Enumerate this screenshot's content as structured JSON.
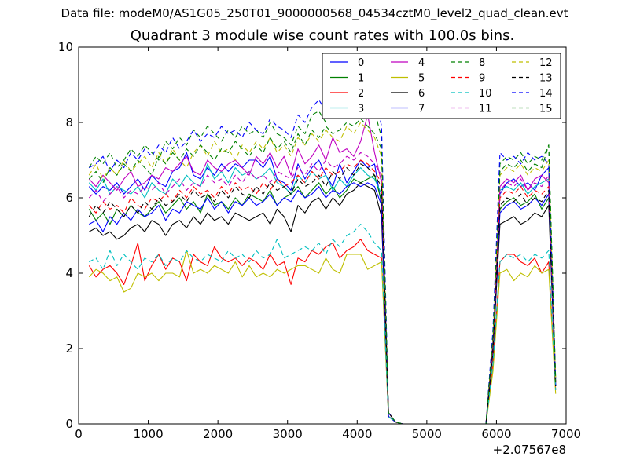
{
  "figure": {
    "suptitle": "Data file: modeM0/AS1G05_250T01_9000000568_04534cztM0_level2_quad_clean.evt"
  },
  "chart_data": {
    "type": "line",
    "title": "Quadrant 3 module wise count rates with 100.0s bins.",
    "xlabel": "",
    "ylabel": "",
    "x_offset_label": "+2.07567e8",
    "xlim": [
      0,
      7000
    ],
    "ylim": [
      0,
      10
    ],
    "xticks": [
      0,
      1000,
      2000,
      3000,
      4000,
      5000,
      6000,
      7000
    ],
    "yticks": [
      0,
      2,
      4,
      6,
      8,
      10
    ],
    "grid": false,
    "legend": {
      "placement": "top-right",
      "columns": 4
    },
    "x": [
      150,
      250,
      350,
      450,
      550,
      650,
      750,
      850,
      950,
      1050,
      1150,
      1250,
      1350,
      1450,
      1550,
      1650,
      1750,
      1850,
      1950,
      2050,
      2150,
      2250,
      2350,
      2450,
      2550,
      2650,
      2750,
      2850,
      2950,
      3050,
      3150,
      3250,
      3350,
      3450,
      3550,
      3650,
      3750,
      3850,
      3950,
      4050,
      4150,
      4250,
      4350,
      4450,
      4550,
      4650,
      4750,
      4850,
      4950,
      5050,
      5150,
      5250,
      5350,
      5450,
      5550,
      5650,
      5750,
      5850,
      5950,
      6050,
      6150,
      6250,
      6350,
      6450,
      6550,
      6650,
      6750,
      6850
    ],
    "series": [
      {
        "name": "0",
        "color": "#0000ff",
        "dash": "solid",
        "values": [
          6.3,
          6.1,
          6.3,
          6.2,
          6.4,
          6.1,
          6.3,
          6.5,
          6.2,
          6.6,
          6.4,
          6.3,
          6.7,
          6.8,
          7.2,
          6.6,
          6.5,
          6.8,
          6.6,
          6.9,
          6.7,
          6.9,
          6.8,
          7.0,
          7.0,
          6.8,
          7.1,
          6.5,
          6.4,
          6.2,
          6.9,
          6.5,
          6.8,
          7.0,
          6.6,
          6.3,
          6.9,
          6.4,
          6.7,
          7.0,
          6.8,
          6.9,
          5.8,
          0.3,
          0.05,
          0,
          0,
          0,
          0,
          0,
          0,
          0,
          0,
          0,
          0,
          0,
          0,
          0,
          2.0,
          6.1,
          6.4,
          6.5,
          6.3,
          6.4,
          6.2,
          6.6,
          6.8,
          1.0
        ]
      },
      {
        "name": "1",
        "color": "#008000",
        "dash": "solid",
        "values": [
          5.7,
          5.4,
          5.6,
          5.3,
          5.7,
          5.5,
          5.8,
          5.6,
          5.5,
          5.7,
          5.9,
          5.6,
          5.8,
          6.0,
          5.7,
          5.9,
          5.6,
          6.1,
          5.8,
          5.9,
          5.7,
          6.0,
          5.8,
          6.1,
          6.0,
          5.9,
          6.2,
          5.8,
          6.0,
          6.1,
          6.3,
          6.0,
          6.2,
          6.4,
          6.1,
          6.3,
          6.0,
          6.2,
          6.5,
          6.4,
          6.5,
          6.6,
          5.9,
          0.3,
          0.05,
          0,
          0,
          0,
          0,
          0,
          0,
          0,
          0,
          0,
          0,
          0,
          0,
          0,
          2.2,
          5.7,
          5.9,
          6.0,
          5.8,
          5.9,
          6.1,
          5.7,
          6.0,
          1.2
        ]
      },
      {
        "name": "2",
        "color": "#ff0000",
        "dash": "solid",
        "values": [
          4.2,
          3.9,
          4.1,
          4.2,
          4.0,
          3.7,
          4.2,
          4.8,
          3.8,
          4.2,
          4.5,
          4.1,
          4.4,
          4.3,
          3.8,
          4.5,
          4.3,
          4.2,
          4.7,
          4.4,
          4.3,
          4.4,
          4.2,
          4.4,
          4.3,
          4.1,
          4.5,
          4.2,
          4.3,
          3.7,
          4.4,
          4.3,
          4.6,
          4.5,
          4.7,
          4.8,
          4.4,
          4.6,
          4.7,
          4.9,
          4.6,
          4.5,
          4.4,
          0.2,
          0.05,
          0,
          0,
          0,
          0,
          0,
          0,
          0,
          0,
          0,
          0,
          0,
          0,
          0,
          1.6,
          4.3,
          4.5,
          4.5,
          4.3,
          4.2,
          4.4,
          4.0,
          4.3,
          0.9
        ]
      },
      {
        "name": "3",
        "color": "#00bfbf",
        "dash": "solid",
        "values": [
          6.4,
          6.2,
          6.5,
          6.1,
          6.3,
          6.2,
          6.1,
          6.3,
          6.0,
          6.4,
          6.2,
          6.1,
          6.5,
          6.3,
          6.6,
          6.4,
          6.3,
          6.9,
          6.5,
          6.7,
          6.4,
          6.8,
          6.6,
          6.7,
          6.5,
          6.6,
          6.8,
          6.4,
          6.3,
          6.1,
          6.6,
          6.4,
          6.7,
          6.5,
          6.6,
          6.2,
          6.5,
          6.3,
          6.6,
          6.8,
          6.6,
          6.5,
          6.1,
          0.3,
          0.05,
          0,
          0,
          0,
          0,
          0,
          0,
          0,
          0,
          0,
          0,
          0,
          0,
          0,
          2.0,
          6.2,
          6.3,
          6.2,
          6.4,
          6.1,
          6.3,
          6.4,
          6.5,
          1.1
        ]
      },
      {
        "name": "4",
        "color": "#bf00bf",
        "dash": "solid",
        "values": [
          6.5,
          6.3,
          6.6,
          6.4,
          6.2,
          6.5,
          6.7,
          6.3,
          6.4,
          6.6,
          6.5,
          6.8,
          6.7,
          6.9,
          7.1,
          6.7,
          6.6,
          7.0,
          6.8,
          6.7,
          6.9,
          7.0,
          6.8,
          6.6,
          7.1,
          6.9,
          7.2,
          6.8,
          7.1,
          6.6,
          7.3,
          6.9,
          7.1,
          7.4,
          7.0,
          7.6,
          7.2,
          7.3,
          7.1,
          7.5,
          8.2,
          7.2,
          6.4,
          0.3,
          0.05,
          0,
          0,
          0,
          0,
          0,
          0,
          0,
          0,
          0,
          0,
          0,
          0,
          0,
          2.1,
          6.3,
          6.5,
          6.4,
          6.6,
          6.2,
          6.5,
          6.6,
          6.4,
          1.1
        ]
      },
      {
        "name": "5",
        "color": "#bfbf00",
        "dash": "solid",
        "values": [
          3.9,
          4.1,
          4.0,
          3.8,
          3.9,
          3.5,
          3.6,
          4.0,
          3.9,
          4.0,
          3.8,
          4.0,
          4.0,
          3.9,
          4.6,
          4.0,
          4.1,
          4.0,
          4.2,
          4.1,
          4.0,
          4.3,
          3.9,
          4.2,
          3.9,
          4.0,
          3.9,
          4.1,
          4.0,
          4.1,
          4.2,
          4.2,
          4.1,
          4.0,
          4.4,
          4.1,
          4.0,
          4.5,
          4.5,
          4.5,
          4.1,
          4.2,
          4.3,
          0.2,
          0.05,
          0,
          0,
          0,
          0,
          0,
          0,
          0,
          0,
          0,
          0,
          0,
          0,
          0,
          1.4,
          4.0,
          4.1,
          3.8,
          4.0,
          3.9,
          4.2,
          4.0,
          4.1,
          0.8
        ]
      },
      {
        "name": "6",
        "color": "#000000",
        "dash": "solid",
        "values": [
          5.1,
          5.2,
          5.0,
          5.1,
          4.9,
          5.0,
          5.2,
          5.3,
          5.1,
          5.4,
          5.3,
          5.0,
          5.3,
          5.4,
          5.2,
          5.5,
          5.3,
          5.6,
          5.4,
          5.5,
          5.3,
          5.6,
          5.5,
          5.4,
          5.5,
          5.6,
          5.3,
          5.7,
          5.5,
          5.1,
          5.8,
          5.6,
          5.9,
          6.0,
          5.7,
          6.0,
          5.8,
          6.1,
          6.2,
          6.4,
          6.3,
          6.2,
          5.5,
          0.2,
          0.05,
          0,
          0,
          0,
          0,
          0,
          0,
          0,
          0,
          0,
          0,
          0,
          0,
          0,
          1.9,
          5.3,
          5.4,
          5.5,
          5.3,
          5.4,
          5.6,
          5.5,
          5.8,
          1.0
        ]
      },
      {
        "name": "7",
        "color": "#0000ff",
        "dash": "solid",
        "values": [
          5.3,
          5.4,
          5.1,
          5.5,
          5.3,
          5.6,
          5.4,
          5.7,
          5.5,
          5.6,
          5.8,
          5.4,
          5.7,
          5.6,
          5.9,
          5.8,
          5.7,
          6.0,
          5.7,
          5.9,
          5.6,
          5.9,
          5.8,
          6.0,
          5.8,
          5.9,
          6.1,
          5.8,
          6.0,
          5.9,
          6.2,
          6.0,
          6.1,
          6.3,
          6.0,
          6.2,
          6.1,
          6.3,
          6.4,
          6.3,
          6.4,
          6.3,
          5.8,
          0.2,
          0.05,
          0,
          0,
          0,
          0,
          0,
          0,
          0,
          0,
          0,
          0,
          0,
          0,
          0,
          2.0,
          5.6,
          5.8,
          5.9,
          5.7,
          5.8,
          6.0,
          5.8,
          6.1,
          1.0
        ]
      },
      {
        "name": "8",
        "color": "#008000",
        "dash": "dashed",
        "values": [
          6.8,
          7.1,
          6.9,
          7.2,
          6.8,
          7.0,
          7.3,
          7.1,
          7.4,
          7.2,
          7.0,
          7.5,
          7.3,
          7.6,
          7.4,
          7.8,
          7.6,
          7.9,
          7.7,
          7.5,
          7.8,
          7.6,
          7.9,
          7.7,
          7.8,
          7.6,
          8.0,
          7.7,
          7.6,
          7.4,
          7.9,
          7.7,
          8.2,
          8.3,
          8.0,
          8.5,
          8.2,
          8.4,
          8.6,
          8.8,
          8.5,
          8.3,
          7.6,
          0.3,
          0.05,
          0,
          0,
          0,
          0,
          0,
          0,
          0,
          0,
          0,
          0,
          0,
          0,
          0,
          2.4,
          6.9,
          7.1,
          7.0,
          7.2,
          6.9,
          7.1,
          7.0,
          7.4,
          1.2
        ]
      },
      {
        "name": "9",
        "color": "#ff0000",
        "dash": "dashed",
        "values": [
          5.8,
          5.6,
          5.9,
          5.7,
          5.8,
          5.6,
          6.0,
          5.8,
          5.7,
          6.0,
          5.9,
          6.1,
          5.9,
          6.2,
          6.0,
          6.3,
          6.1,
          6.2,
          6.0,
          6.3,
          6.1,
          6.4,
          6.2,
          6.3,
          6.1,
          6.4,
          6.2,
          6.5,
          6.3,
          6.4,
          6.6,
          6.4,
          6.7,
          6.5,
          6.8,
          6.6,
          6.7,
          6.9,
          6.8,
          7.0,
          6.9,
          6.7,
          6.4,
          0.3,
          0.05,
          0,
          0,
          0,
          0,
          0,
          0,
          0,
          0,
          0,
          0,
          0,
          0,
          0,
          2.1,
          6.0,
          6.2,
          6.1,
          6.3,
          6.0,
          6.2,
          6.1,
          6.3,
          1.1
        ]
      },
      {
        "name": "10",
        "color": "#00bfbf",
        "dash": "dashed",
        "values": [
          4.3,
          4.4,
          4.1,
          4.6,
          4.2,
          4.5,
          4.3,
          4.1,
          4.4,
          4.3,
          4.5,
          4.2,
          4.4,
          4.3,
          4.6,
          4.4,
          4.3,
          4.5,
          4.4,
          4.3,
          4.6,
          4.4,
          4.5,
          4.3,
          4.6,
          4.4,
          4.5,
          4.9,
          4.4,
          4.5,
          4.6,
          4.7,
          4.6,
          4.8,
          4.5,
          4.9,
          4.7,
          5.0,
          5.1,
          5.3,
          5.1,
          4.8,
          4.6,
          0.2,
          0.05,
          0,
          0,
          0,
          0,
          0,
          0,
          0,
          0,
          0,
          0,
          0,
          0,
          0,
          1.6,
          4.3,
          4.5,
          4.4,
          4.5,
          4.3,
          4.5,
          4.4,
          4.6,
          0.9
        ]
      },
      {
        "name": "11",
        "color": "#bf00bf",
        "dash": "dashed",
        "values": [
          6.0,
          6.2,
          5.9,
          6.1,
          6.3,
          6.0,
          6.2,
          6.1,
          6.3,
          6.2,
          6.4,
          6.1,
          6.3,
          6.5,
          6.2,
          6.4,
          6.3,
          6.6,
          6.4,
          6.5,
          6.3,
          6.6,
          6.4,
          6.7,
          6.5,
          6.6,
          6.4,
          6.7,
          6.6,
          6.5,
          6.8,
          6.6,
          6.9,
          6.7,
          7.0,
          6.8,
          6.9,
          7.1,
          7.0,
          7.2,
          7.1,
          6.9,
          6.6,
          0.3,
          0.05,
          0,
          0,
          0,
          0,
          0,
          0,
          0,
          0,
          0,
          0,
          0,
          0,
          0,
          2.1,
          6.2,
          6.4,
          6.3,
          6.5,
          6.2,
          6.4,
          6.3,
          6.6,
          1.1
        ]
      },
      {
        "name": "12",
        "color": "#bfbf00",
        "dash": "dashed",
        "values": [
          6.6,
          6.9,
          6.5,
          6.8,
          6.6,
          7.0,
          6.7,
          6.9,
          7.1,
          6.8,
          7.2,
          6.9,
          7.3,
          7.0,
          6.8,
          7.2,
          7.4,
          7.1,
          7.5,
          7.2,
          7.3,
          7.0,
          7.4,
          7.2,
          7.5,
          7.3,
          7.6,
          7.2,
          7.4,
          7.1,
          7.6,
          7.4,
          7.7,
          7.5,
          7.8,
          7.6,
          7.5,
          7.9,
          7.7,
          8.0,
          7.8,
          7.6,
          7.1,
          0.3,
          0.05,
          0,
          0,
          0,
          0,
          0,
          0,
          0,
          0,
          0,
          0,
          0,
          0,
          0,
          2.3,
          6.6,
          6.8,
          6.7,
          6.9,
          6.6,
          6.8,
          6.7,
          7.0,
          1.2
        ]
      },
      {
        "name": "13",
        "color": "#000000",
        "dash": "dashed",
        "values": [
          5.5,
          5.8,
          5.6,
          5.9,
          5.7,
          5.5,
          5.8,
          5.6,
          5.9,
          5.7,
          6.0,
          5.8,
          5.9,
          6.1,
          5.9,
          6.2,
          6.0,
          6.1,
          5.9,
          6.2,
          6.0,
          6.3,
          6.1,
          6.0,
          6.3,
          6.1,
          6.4,
          6.2,
          6.3,
          6.1,
          6.5,
          6.3,
          6.4,
          6.6,
          6.3,
          6.7,
          6.5,
          6.8,
          6.6,
          6.9,
          6.8,
          6.6,
          6.3,
          0.3,
          0.05,
          0,
          0,
          0,
          0,
          0,
          0,
          0,
          0,
          0,
          0,
          0,
          0,
          0,
          2.0,
          5.8,
          6.0,
          5.9,
          6.1,
          5.8,
          6.0,
          5.9,
          6.2,
          1.0
        ]
      },
      {
        "name": "14",
        "color": "#0000ff",
        "dash": "dashed",
        "values": [
          6.8,
          6.9,
          7.1,
          6.7,
          7.0,
          6.8,
          7.2,
          7.0,
          7.3,
          7.1,
          7.4,
          7.2,
          7.6,
          7.3,
          7.5,
          7.8,
          7.5,
          7.7,
          7.6,
          7.9,
          7.7,
          7.8,
          7.6,
          8.0,
          7.8,
          7.7,
          8.1,
          7.9,
          7.8,
          7.6,
          8.2,
          8.0,
          8.4,
          8.6,
          8.3,
          8.8,
          8.5,
          8.9,
          8.7,
          9.0,
          9.2,
          8.8,
          7.9,
          0.3,
          0.05,
          0,
          0,
          0,
          0,
          0,
          0,
          0,
          0,
          0,
          0,
          0,
          0,
          0,
          2.5,
          7.2,
          7.0,
          7.1,
          6.9,
          7.2,
          7.0,
          7.1,
          6.9,
          1.2
        ]
      },
      {
        "name": "15",
        "color": "#008000",
        "dash": "dashed",
        "values": [
          6.5,
          6.7,
          6.4,
          6.8,
          6.6,
          6.9,
          6.7,
          7.0,
          6.8,
          6.6,
          7.1,
          6.9,
          7.2,
          7.0,
          7.3,
          7.1,
          7.4,
          7.2,
          7.0,
          7.3,
          7.2,
          7.5,
          7.3,
          7.1,
          7.4,
          7.2,
          7.6,
          7.3,
          7.5,
          7.2,
          7.7,
          7.4,
          7.8,
          7.6,
          7.9,
          7.7,
          7.8,
          8.0,
          7.9,
          8.1,
          7.9,
          7.7,
          7.3,
          0.3,
          0.05,
          0,
          0,
          0,
          0,
          0,
          0,
          0,
          0,
          0,
          0,
          0,
          0,
          0,
          2.3,
          6.7,
          6.9,
          6.8,
          7.0,
          6.7,
          6.9,
          6.8,
          7.4,
          1.1
        ]
      }
    ]
  }
}
